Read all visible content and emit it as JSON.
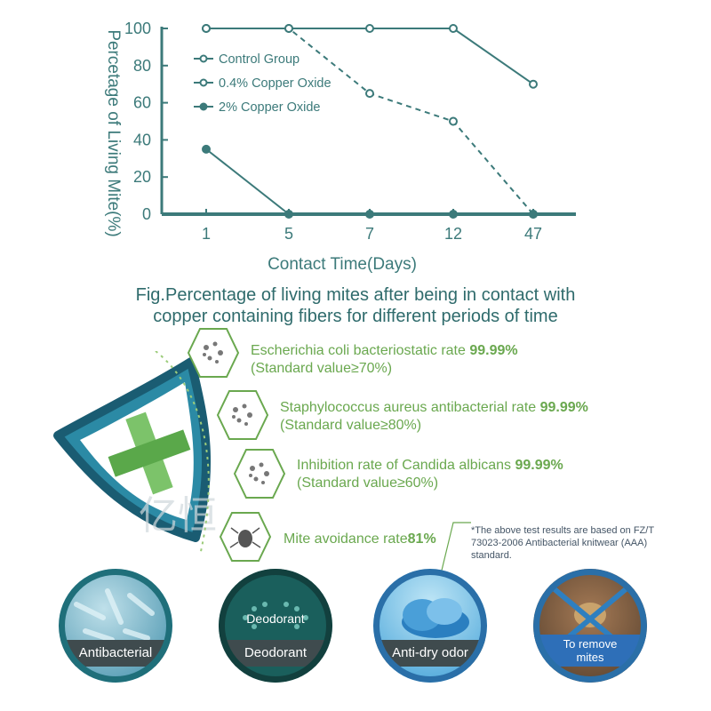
{
  "chart_data": {
    "type": "line",
    "categories": [
      "1",
      "5",
      "7",
      "12",
      "47"
    ],
    "series": [
      {
        "name": "Control Group",
        "values": [
          100,
          100,
          100,
          100,
          70
        ],
        "style": "solid-hollow"
      },
      {
        "name": "0.4% Copper Oxide",
        "values": [
          100,
          100,
          65,
          50,
          0
        ],
        "style": "dashed-hollow"
      },
      {
        "name": "2% Copper Oxide",
        "values": [
          35,
          0,
          0,
          0,
          0
        ],
        "style": "solid-filled"
      }
    ],
    "yticks": [
      "0",
      "20",
      "40",
      "60",
      "80",
      "100"
    ],
    "ylim": [
      0,
      100
    ],
    "xlabel": "Contact Time(Days)",
    "ylabel": "Percetage of Living Mite(%)",
    "legend_position": "top-left",
    "color": "#3c7a7a"
  },
  "caption": {
    "line1": "Fig.Percentage of living mites after being in contact with",
    "line2": "copper containing fibers for different periods of time"
  },
  "features": [
    {
      "text": "Escherichia coli bacteriostatic rate ",
      "value": "99.99%",
      "standard": "(Standard value≥70%)",
      "icon": "e-coli-icon"
    },
    {
      "text": "Staphylococcus aureus antibacterial rate ",
      "value": "99.99%",
      "standard": "(Standard value≥80%)",
      "icon": "staphylococcus-icon"
    },
    {
      "text": "Inhibition rate of Candida albicans ",
      "value": "99.99%",
      "standard": "(Standard value≥60%)",
      "icon": "candida-icon"
    },
    {
      "text": "Mite avoidance rate",
      "value": "81%",
      "standard": "",
      "icon": "mite-icon"
    }
  ],
  "note": "*The above test results are based on FZ/T 73023-2006 Antibacterial knitwear (AAA) standard.",
  "logo_text": "亿恒",
  "circles": [
    {
      "label": "Antibacterial",
      "icon": "bacteria-icon"
    },
    {
      "label": "Deodorant",
      "inner": "Deodorant",
      "icon": "deodorant-icon"
    },
    {
      "label": "Anti-dry odor",
      "icon": "cloud-icon"
    },
    {
      "label": "To remove mites",
      "label1": "To remove",
      "label2": "mites",
      "icon": "no-mites-icon"
    }
  ],
  "colors": {
    "teal": "#3c7a7a",
    "green": "#6aa84f",
    "shield": "#1f6f8a"
  }
}
